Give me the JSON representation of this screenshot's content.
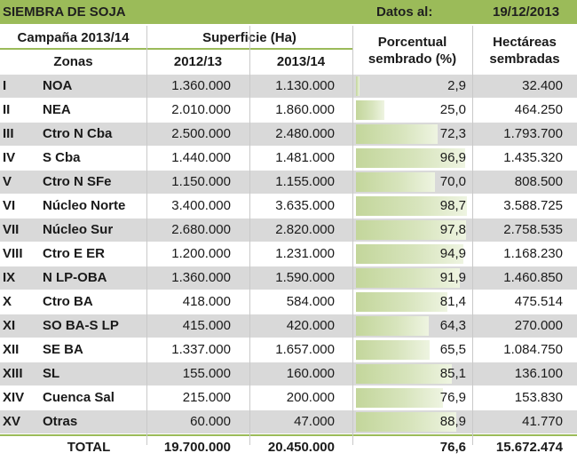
{
  "title": "SIEMBRA DE SOJA",
  "date_label": "Datos al:",
  "date": "19/12/2013",
  "headers": {
    "campaign": "Campaña 2013/14",
    "surface": "Superficie (Ha)",
    "pct_line1": "Porcentual",
    "pct_line2": "sembrado (%)",
    "ha_line1": "Hectáreas",
    "ha_line2": "sembradas",
    "zones": "Zonas",
    "y1": "2012/13",
    "y2": "2013/14"
  },
  "rows": [
    {
      "num": "I",
      "zone": "NOA",
      "a": "1.360.000",
      "b": "1.130.000",
      "pct": "2,9",
      "pct_value": 2.9,
      "ha": "32.400"
    },
    {
      "num": "II",
      "zone": "NEA",
      "a": "2.010.000",
      "b": "1.860.000",
      "pct": "25,0",
      "pct_value": 25.0,
      "ha": "464.250"
    },
    {
      "num": "III",
      "zone": "Ctro N Cba",
      "a": "2.500.000",
      "b": "2.480.000",
      "pct": "72,3",
      "pct_value": 72.3,
      "ha": "1.793.700"
    },
    {
      "num": "IV",
      "zone": "S Cba",
      "a": "1.440.000",
      "b": "1.481.000",
      "pct": "96,9",
      "pct_value": 96.9,
      "ha": "1.435.320"
    },
    {
      "num": "V",
      "zone": "Ctro N SFe",
      "a": "1.150.000",
      "b": "1.155.000",
      "pct": "70,0",
      "pct_value": 70.0,
      "ha": "808.500"
    },
    {
      "num": "VI",
      "zone": "Núcleo Norte",
      "a": "3.400.000",
      "b": "3.635.000",
      "pct": "98,7",
      "pct_value": 98.7,
      "ha": "3.588.725"
    },
    {
      "num": "VII",
      "zone": "Núcleo Sur",
      "a": "2.680.000",
      "b": "2.820.000",
      "pct": "97,8",
      "pct_value": 97.8,
      "ha": "2.758.535"
    },
    {
      "num": "VIII",
      "zone": "Ctro E ER",
      "a": "1.200.000",
      "b": "1.231.000",
      "pct": "94,9",
      "pct_value": 94.9,
      "ha": "1.168.230"
    },
    {
      "num": "IX",
      "zone": "N LP-OBA",
      "a": "1.360.000",
      "b": "1.590.000",
      "pct": "91,9",
      "pct_value": 91.9,
      "ha": "1.460.850"
    },
    {
      "num": "X",
      "zone": "Ctro BA",
      "a": "418.000",
      "b": "584.000",
      "pct": "81,4",
      "pct_value": 81.4,
      "ha": "475.514"
    },
    {
      "num": "XI",
      "zone": "SO BA-S LP",
      "a": "415.000",
      "b": "420.000",
      "pct": "64,3",
      "pct_value": 64.3,
      "ha": "270.000"
    },
    {
      "num": "XII",
      "zone": "SE BA",
      "a": "1.337.000",
      "b": "1.657.000",
      "pct": "65,5",
      "pct_value": 65.5,
      "ha": "1.084.750"
    },
    {
      "num": "XIII",
      "zone": "SL",
      "a": "155.000",
      "b": "160.000",
      "pct": "85,1",
      "pct_value": 85.1,
      "ha": "136.100"
    },
    {
      "num": "XIV",
      "zone": "Cuenca Sal",
      "a": "215.000",
      "b": "200.000",
      "pct": "76,9",
      "pct_value": 76.9,
      "ha": "153.830"
    },
    {
      "num": "XV",
      "zone": "Otras",
      "a": "60.000",
      "b": "47.000",
      "pct": "88,9",
      "pct_value": 88.9,
      "ha": "41.770"
    }
  ],
  "total": {
    "label": "TOTAL",
    "a": "19.700.000",
    "b": "20.450.000",
    "pct": "76,6",
    "ha": "15.672.474"
  },
  "colors": {
    "header": "#9bbb59",
    "row_shade": "#d9d9d9",
    "bar": "#c3d69b"
  }
}
